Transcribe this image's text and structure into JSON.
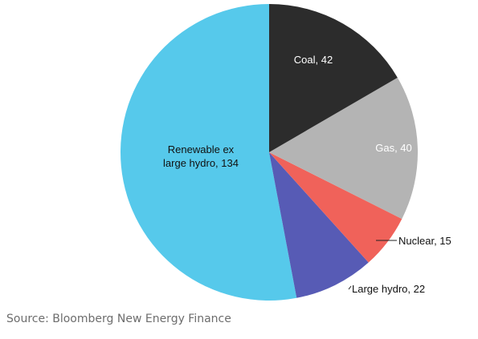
{
  "chart_data": {
    "type": "pie",
    "values": [
      42,
      40,
      15,
      22,
      134
    ],
    "value_labels": [
      "Coal, 42",
      "Gas, 40",
      "Nuclear, 15",
      "Large hydro, 22",
      "Renewable ex large hydro, 134"
    ],
    "colors": [
      "#2c2c2c",
      "#b4b4b4",
      "#f0625a",
      "#575bb5",
      "#56c9eb"
    ],
    "source": "Source: Bloomberg New Energy Finance"
  }
}
